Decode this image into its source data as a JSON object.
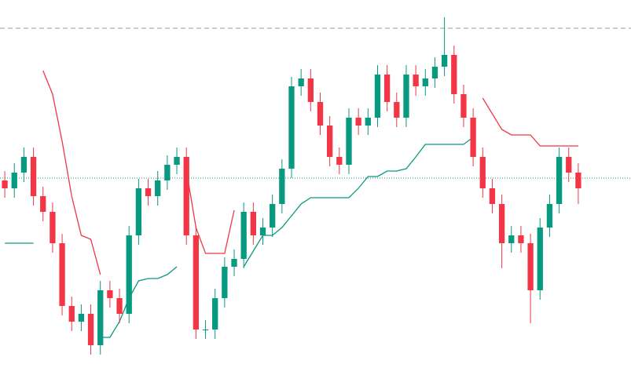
{
  "chart_data": {
    "type": "candlestick",
    "categories": [
      null,
      null,
      null,
      null,
      null,
      null,
      null,
      null,
      null,
      null,
      null,
      null,
      null,
      null,
      null,
      null,
      null,
      null,
      null,
      null,
      null,
      null,
      null,
      null,
      null,
      null,
      null,
      null,
      null,
      null,
      null,
      null,
      null,
      null,
      null,
      null,
      null,
      null,
      null,
      null,
      null,
      null,
      null,
      null,
      null,
      null,
      null,
      null,
      null,
      null,
      null,
      null,
      null,
      null,
      null,
      null,
      null,
      null,
      null,
      null,
      null
    ],
    "open": [
      262,
      252,
      272,
      292,
      242,
      222,
      182,
      102,
      82,
      92,
      52,
      122,
      112,
      92,
      192,
      252,
      242,
      262,
      282,
      292,
      192,
      72,
      72,
      112,
      152,
      162,
      222,
      192,
      202,
      232,
      277,
      382,
      392,
      362,
      332,
      292,
      282,
      342,
      332,
      342,
      397,
      362,
      342,
      397,
      382,
      392,
      407,
      422,
      372,
      342,
      292,
      252,
      232,
      182,
      192,
      182,
      122,
      202,
      232,
      292,
      272
    ],
    "high": [
      274,
      284,
      304,
      304,
      254,
      234,
      194,
      114,
      104,
      104,
      134,
      134,
      124,
      204,
      264,
      264,
      274,
      294,
      304,
      304,
      204,
      84,
      124,
      164,
      174,
      234,
      234,
      214,
      244,
      289,
      394,
      404,
      404,
      374,
      344,
      304,
      354,
      354,
      354,
      409,
      409,
      374,
      409,
      409,
      404,
      419,
      470,
      434,
      384,
      354,
      304,
      264,
      244,
      204,
      204,
      194,
      214,
      244,
      304,
      304,
      284
    ],
    "low": [
      240,
      240,
      260,
      230,
      210,
      170,
      90,
      70,
      70,
      40,
      40,
      100,
      80,
      80,
      180,
      230,
      230,
      250,
      270,
      180,
      60,
      60,
      60,
      100,
      140,
      150,
      180,
      180,
      190,
      220,
      265,
      370,
      350,
      320,
      280,
      270,
      270,
      320,
      320,
      330,
      350,
      330,
      330,
      370,
      370,
      380,
      395,
      360,
      330,
      280,
      240,
      220,
      150,
      170,
      170,
      80,
      110,
      190,
      220,
      260,
      232
    ],
    "close": [
      252,
      272,
      292,
      242,
      222,
      182,
      102,
      82,
      92,
      52,
      122,
      112,
      92,
      192,
      252,
      242,
      262,
      282,
      292,
      192,
      72,
      72,
      112,
      152,
      162,
      222,
      192,
      202,
      232,
      277,
      382,
      392,
      362,
      332,
      292,
      282,
      342,
      332,
      342,
      397,
      362,
      342,
      397,
      382,
      392,
      407,
      422,
      372,
      342,
      292,
      252,
      232,
      182,
      192,
      182,
      122,
      202,
      232,
      292,
      272,
      252
    ],
    "up_color": "#089981",
    "down_color": "#f23645",
    "series": [
      {
        "color": "#f23645",
        "values": [
          null,
          null,
          null,
          null,
          402,
          372,
          312,
          242,
          192,
          187,
          142,
          null,
          null,
          null,
          null,
          null,
          null,
          null,
          null,
          275,
          202,
          169,
          169,
          169,
          224,
          null,
          null,
          null,
          null,
          null,
          null,
          null,
          null,
          null,
          null,
          null,
          null,
          null,
          null,
          null,
          null,
          null,
          null,
          null,
          null,
          null,
          null,
          null,
          null,
          null,
          367,
          347,
          327,
          320,
          320,
          320,
          306,
          306,
          306,
          306,
          306
        ]
      },
      {
        "color": "#089981",
        "values": [
          182,
          182,
          182,
          182,
          null,
          null,
          null,
          null,
          null,
          null,
          62,
          62,
          82,
          112,
          134,
          137,
          137,
          142,
          152,
          null,
          null,
          null,
          null,
          null,
          null,
          152,
          172,
          192,
          192,
          202,
          217,
          232,
          240,
          240,
          240,
          240,
          240,
          252,
          267,
          267,
          274,
          274,
          277,
          292,
          308,
          308,
          308,
          308,
          308,
          317,
          null,
          null,
          null,
          null,
          null,
          null,
          null,
          null,
          null,
          null,
          null
        ]
      }
    ],
    "reference_lines": [
      {
        "value": 456,
        "style": "dashed"
      },
      {
        "value": 265,
        "style": "dotted"
      }
    ],
    "ylim": [
      0,
      492
    ]
  }
}
